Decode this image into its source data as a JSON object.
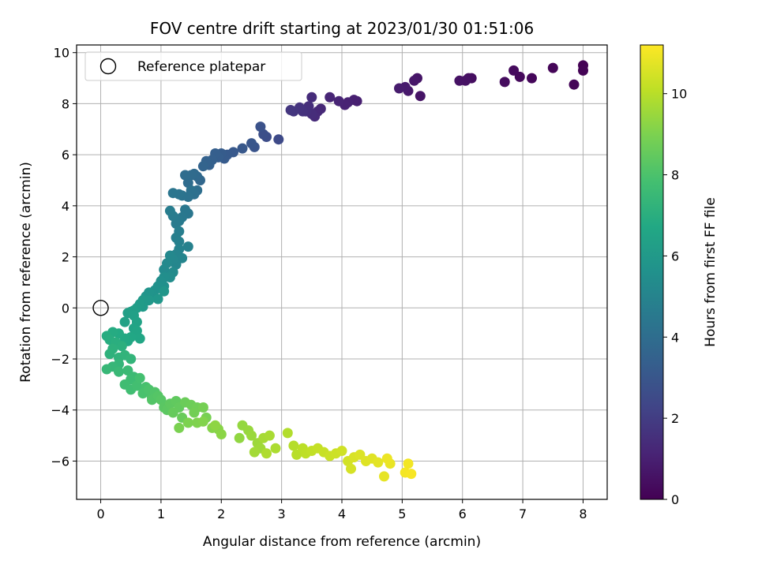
{
  "chart_data": {
    "type": "scatter",
    "title": "FOV centre drift starting at 2023/01/30 01:51:06",
    "xlabel": "Angular distance from reference (arcmin)",
    "ylabel": "Rotation from reference (arcmin)",
    "xlim": [
      -0.4,
      8.4
    ],
    "ylim": [
      -7.5,
      10.3
    ],
    "xticks": [
      0,
      1,
      2,
      3,
      4,
      5,
      6,
      7,
      8
    ],
    "yticks": [
      -6,
      -4,
      -2,
      0,
      2,
      4,
      6,
      8,
      10
    ],
    "grid": true,
    "legend": {
      "placement": "top-left",
      "entries": [
        "Reference platepar"
      ]
    },
    "reference_point": {
      "name": "Reference platepar",
      "x": 0,
      "y": 0
    },
    "colorbar": {
      "label": "Hours from first FF file",
      "range": [
        0,
        11.2
      ],
      "ticks": [
        0,
        2,
        4,
        6,
        8,
        10
      ],
      "colormap": "viridis"
    },
    "points": [
      [
        8.0,
        9.5,
        0.0
      ],
      [
        8.0,
        9.3,
        0.05
      ],
      [
        7.85,
        8.75,
        0.1
      ],
      [
        7.5,
        9.4,
        0.15
      ],
      [
        7.15,
        9.0,
        0.2
      ],
      [
        6.95,
        9.05,
        0.25
      ],
      [
        6.85,
        9.3,
        0.3
      ],
      [
        6.7,
        8.85,
        0.35
      ],
      [
        6.15,
        9.0,
        0.4
      ],
      [
        6.1,
        9.0,
        0.45
      ],
      [
        6.05,
        8.9,
        0.5
      ],
      [
        5.95,
        8.9,
        0.55
      ],
      [
        5.3,
        8.3,
        0.6
      ],
      [
        5.25,
        9.0,
        0.65
      ],
      [
        5.2,
        8.9,
        0.7
      ],
      [
        5.1,
        8.5,
        0.75
      ],
      [
        5.05,
        8.65,
        0.8
      ],
      [
        4.95,
        8.6,
        0.85
      ],
      [
        4.25,
        8.1,
        0.95
      ],
      [
        4.2,
        8.15,
        1.0
      ],
      [
        4.1,
        8.05,
        1.05
      ],
      [
        4.05,
        7.95,
        1.1
      ],
      [
        3.95,
        8.1,
        1.15
      ],
      [
        3.8,
        8.25,
        1.2
      ],
      [
        3.65,
        7.8,
        1.25
      ],
      [
        3.6,
        7.7,
        1.3
      ],
      [
        3.55,
        7.5,
        1.35
      ],
      [
        3.5,
        8.25,
        1.4
      ],
      [
        3.5,
        7.6,
        1.45
      ],
      [
        3.45,
        7.9,
        1.5
      ],
      [
        3.4,
        7.7,
        1.55
      ],
      [
        3.35,
        7.7,
        1.6
      ],
      [
        3.3,
        7.85,
        1.65
      ],
      [
        3.2,
        7.7,
        1.7
      ],
      [
        3.15,
        7.75,
        1.75
      ],
      [
        2.95,
        6.6,
        2.5
      ],
      [
        2.75,
        6.7,
        2.6
      ],
      [
        2.7,
        6.8,
        2.7
      ],
      [
        2.65,
        7.1,
        2.8
      ],
      [
        2.55,
        6.3,
        2.9
      ],
      [
        2.5,
        6.45,
        3.0
      ],
      [
        2.35,
        6.25,
        3.05
      ],
      [
        2.2,
        6.1,
        3.1
      ],
      [
        2.1,
        6.0,
        3.15
      ],
      [
        2.05,
        5.85,
        3.2
      ],
      [
        2.0,
        6.05,
        3.25
      ],
      [
        1.95,
        5.9,
        3.3
      ],
      [
        1.9,
        6.05,
        3.35
      ],
      [
        1.85,
        5.8,
        3.4
      ],
      [
        1.8,
        5.6,
        3.45
      ],
      [
        1.75,
        5.75,
        3.5
      ],
      [
        1.7,
        5.55,
        3.6
      ],
      [
        1.65,
        5.0,
        3.7
      ],
      [
        1.6,
        5.15,
        3.8
      ],
      [
        1.55,
        5.25,
        3.85
      ],
      [
        1.5,
        5.2,
        3.9
      ],
      [
        1.45,
        4.9,
        3.95
      ],
      [
        1.4,
        5.2,
        4.0
      ],
      [
        1.6,
        4.6,
        4.05
      ],
      [
        1.55,
        4.45,
        4.1
      ],
      [
        1.5,
        4.6,
        4.15
      ],
      [
        1.45,
        4.35,
        4.2
      ],
      [
        1.35,
        4.4,
        4.25
      ],
      [
        1.3,
        4.45,
        4.3
      ],
      [
        1.2,
        4.5,
        4.35
      ],
      [
        1.45,
        3.7,
        4.4
      ],
      [
        1.4,
        3.85,
        4.45
      ],
      [
        1.35,
        3.55,
        4.5
      ],
      [
        1.3,
        3.4,
        4.55
      ],
      [
        1.25,
        3.3,
        4.6
      ],
      [
        1.2,
        3.6,
        4.65
      ],
      [
        1.15,
        3.8,
        4.7
      ],
      [
        1.3,
        3.0,
        4.75
      ],
      [
        1.25,
        2.75,
        4.8
      ],
      [
        1.3,
        2.6,
        4.85
      ],
      [
        1.45,
        2.4,
        4.9
      ],
      [
        1.3,
        2.3,
        4.95
      ],
      [
        1.25,
        2.1,
        5.0
      ],
      [
        1.35,
        1.95,
        5.05
      ],
      [
        1.25,
        1.7,
        5.1
      ],
      [
        1.2,
        1.9,
        5.15
      ],
      [
        1.15,
        2.05,
        5.2
      ],
      [
        1.1,
        1.75,
        5.25
      ],
      [
        1.05,
        1.5,
        5.3
      ],
      [
        1.2,
        1.4,
        5.35
      ],
      [
        1.15,
        1.2,
        5.4
      ],
      [
        1.05,
        1.2,
        5.45
      ],
      [
        1.0,
        1.05,
        5.5
      ],
      [
        1.05,
        0.85,
        5.55
      ],
      [
        0.95,
        0.85,
        5.6
      ],
      [
        0.9,
        0.7,
        5.65
      ],
      [
        0.85,
        0.55,
        5.7
      ],
      [
        0.8,
        0.6,
        5.75
      ],
      [
        0.75,
        0.45,
        5.8
      ],
      [
        1.05,
        0.65,
        5.85
      ],
      [
        0.95,
        0.35,
        5.9
      ],
      [
        0.8,
        0.3,
        5.95
      ],
      [
        0.7,
        0.3,
        6.0
      ],
      [
        0.7,
        0.05,
        6.05
      ],
      [
        0.65,
        0.15,
        6.1
      ],
      [
        0.6,
        0.0,
        6.15
      ],
      [
        0.5,
        -0.15,
        6.2
      ],
      [
        0.55,
        -0.1,
        6.25
      ],
      [
        0.45,
        -0.2,
        6.3
      ],
      [
        0.55,
        -0.3,
        6.35
      ],
      [
        0.4,
        -0.55,
        6.4
      ],
      [
        0.6,
        -0.55,
        6.45
      ],
      [
        0.55,
        -0.8,
        6.5
      ],
      [
        0.6,
        -0.9,
        6.55
      ],
      [
        0.65,
        -1.2,
        6.6
      ],
      [
        0.5,
        -1.15,
        6.65
      ],
      [
        0.45,
        -1.3,
        6.7
      ],
      [
        0.4,
        -1.2,
        6.75
      ],
      [
        0.3,
        -1.0,
        6.8
      ],
      [
        0.2,
        -0.95,
        6.85
      ],
      [
        0.1,
        -1.1,
        6.9
      ],
      [
        0.15,
        -1.25,
        6.95
      ],
      [
        0.25,
        -1.35,
        7.0
      ],
      [
        0.35,
        -1.5,
        7.05
      ],
      [
        0.2,
        -1.6,
        7.1
      ],
      [
        0.15,
        -1.8,
        7.15
      ],
      [
        0.3,
        -1.95,
        7.2
      ],
      [
        0.4,
        -1.85,
        7.25
      ],
      [
        0.5,
        -2.0,
        7.3
      ],
      [
        0.3,
        -2.2,
        7.35
      ],
      [
        0.2,
        -2.3,
        7.4
      ],
      [
        0.1,
        -2.4,
        7.45
      ],
      [
        0.3,
        -2.5,
        7.5
      ],
      [
        0.45,
        -2.45,
        7.55
      ],
      [
        0.55,
        -2.7,
        7.6
      ],
      [
        0.5,
        -2.8,
        7.65
      ],
      [
        0.4,
        -3.0,
        7.7
      ],
      [
        0.5,
        -3.2,
        7.75
      ],
      [
        0.6,
        -3.05,
        7.8
      ],
      [
        0.65,
        -2.75,
        7.85
      ],
      [
        0.75,
        -3.1,
        7.9
      ],
      [
        0.7,
        -3.35,
        7.95
      ],
      [
        0.8,
        -3.2,
        8.0
      ],
      [
        0.85,
        -3.5,
        8.05
      ],
      [
        0.9,
        -3.3,
        8.1
      ],
      [
        0.85,
        -3.6,
        8.15
      ],
      [
        0.95,
        -3.45,
        8.2
      ],
      [
        1.0,
        -3.6,
        8.25
      ],
      [
        1.05,
        -3.9,
        8.3
      ],
      [
        1.1,
        -4.0,
        8.35
      ],
      [
        1.15,
        -3.75,
        8.4
      ],
      [
        1.25,
        -3.65,
        8.45
      ],
      [
        1.3,
        -3.9,
        8.5
      ],
      [
        1.2,
        -4.1,
        8.55
      ],
      [
        1.35,
        -4.3,
        8.6
      ],
      [
        1.4,
        -3.7,
        8.65
      ],
      [
        1.5,
        -3.8,
        8.7
      ],
      [
        1.6,
        -3.9,
        8.75
      ],
      [
        1.55,
        -4.1,
        8.8
      ],
      [
        1.7,
        -3.9,
        8.85
      ],
      [
        1.75,
        -4.3,
        8.9
      ],
      [
        1.3,
        -4.7,
        8.95
      ],
      [
        1.45,
        -4.5,
        9.0
      ],
      [
        1.6,
        -4.5,
        9.05
      ],
      [
        1.7,
        -4.45,
        9.1
      ],
      [
        1.85,
        -4.7,
        9.15
      ],
      [
        1.95,
        -4.75,
        9.2
      ],
      [
        2.0,
        -4.95,
        9.25
      ],
      [
        1.9,
        -4.6,
        9.3
      ],
      [
        2.3,
        -5.1,
        9.35
      ],
      [
        2.35,
        -4.6,
        9.4
      ],
      [
        2.45,
        -4.8,
        9.45
      ],
      [
        2.5,
        -5.0,
        9.5
      ],
      [
        2.6,
        -5.3,
        9.55
      ],
      [
        2.65,
        -5.5,
        9.6
      ],
      [
        2.55,
        -5.65,
        9.65
      ],
      [
        2.7,
        -5.1,
        9.7
      ],
      [
        2.8,
        -5.0,
        9.75
      ],
      [
        2.9,
        -5.5,
        9.8
      ],
      [
        2.75,
        -5.7,
        9.85
      ],
      [
        3.1,
        -4.9,
        9.9
      ],
      [
        3.2,
        -5.4,
        9.95
      ],
      [
        3.25,
        -5.75,
        10.0
      ],
      [
        3.35,
        -5.5,
        10.05
      ],
      [
        3.4,
        -5.7,
        10.1
      ],
      [
        3.5,
        -5.6,
        10.15
      ],
      [
        3.6,
        -5.5,
        10.2
      ],
      [
        3.7,
        -5.65,
        10.25
      ],
      [
        3.8,
        -5.8,
        10.3
      ],
      [
        3.9,
        -5.7,
        10.35
      ],
      [
        4.0,
        -5.6,
        10.4
      ],
      [
        4.1,
        -6.0,
        10.45
      ],
      [
        4.15,
        -6.3,
        10.5
      ],
      [
        4.2,
        -5.85,
        10.55
      ],
      [
        4.3,
        -5.75,
        10.6
      ],
      [
        4.4,
        -6.0,
        10.65
      ],
      [
        4.5,
        -5.9,
        10.7
      ],
      [
        4.6,
        -6.05,
        10.75
      ],
      [
        4.7,
        -6.6,
        10.8
      ],
      [
        4.8,
        -6.1,
        10.85
      ],
      [
        4.75,
        -5.9,
        10.9
      ],
      [
        5.1,
        -6.1,
        11.0
      ],
      [
        5.05,
        -6.45,
        11.05
      ],
      [
        5.15,
        -6.5,
        11.1
      ]
    ]
  }
}
